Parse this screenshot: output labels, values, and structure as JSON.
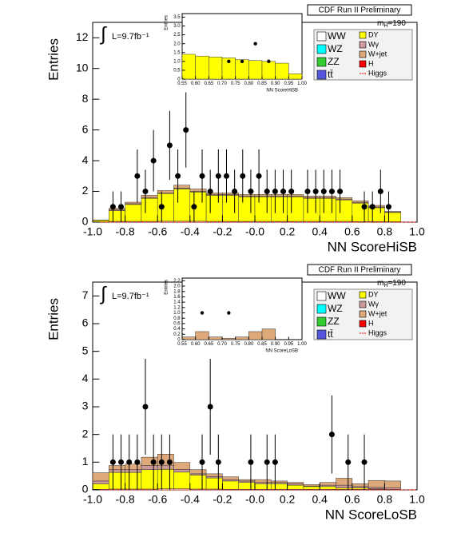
{
  "chart_data": [
    {
      "type": "histogram",
      "title": "CDF Run II Preliminary",
      "mass_symbol": "m",
      "mass_subscript": "H",
      "mass_value": "=190",
      "lumi_symbol": "∫",
      "lumi": "L=9.7fb⁻¹",
      "xlabel": "NN ScoreHiSB",
      "ylabel": "Entries",
      "xlim": [
        -1,
        1
      ],
      "ylim": [
        0,
        13
      ],
      "xticks": [
        {
          "value": -1,
          "label": "-1.0"
        },
        -0.8,
        -0.6,
        -0.4,
        -0.2,
        {
          "value": 0,
          "label": "-0.0"
        },
        0.2,
        0.4,
        0.6,
        0.8,
        {
          "value": 1,
          "label": "1.0"
        }
      ],
      "yticks": [
        0,
        2,
        4,
        6,
        8,
        10,
        12
      ],
      "bins": [
        -1,
        -0.9,
        -0.8,
        -0.7,
        -0.6,
        -0.5,
        -0.4,
        -0.3,
        -0.2,
        -0.1,
        0,
        0.1,
        0.2,
        0.3,
        0.4,
        0.5,
        0.6,
        0.7,
        0.8,
        0.9,
        1
      ],
      "series": [
        {
          "name": "WW",
          "color": "#ffffff",
          "values": [
            0.02,
            0.05,
            0.05,
            0.05,
            0.06,
            0.06,
            0.06,
            0.05,
            0.05,
            0.05,
            0.05,
            0.05,
            0.05,
            0.05,
            0.05,
            0.05,
            0.04,
            0.04,
            0.03,
            0
          ]
        },
        {
          "name": "WZ",
          "color": "#00ffff",
          "values": [
            0,
            0,
            0,
            0,
            0,
            0,
            0,
            0,
            0,
            0,
            0,
            0,
            0,
            0,
            0,
            0,
            0,
            0,
            0,
            0
          ]
        },
        {
          "name": "ZZ",
          "color": "#33cc33",
          "values": [
            0,
            0,
            0,
            0,
            0,
            0,
            0,
            0,
            0,
            0,
            0,
            0,
            0,
            0,
            0,
            0,
            0,
            0,
            0,
            0
          ]
        },
        {
          "name": "tt̄",
          "color": "#5555dd",
          "values": [
            0,
            0,
            0,
            0,
            0,
            0,
            0,
            0,
            0,
            0,
            0,
            0,
            0,
            0,
            0,
            0,
            0,
            0,
            0,
            0
          ]
        },
        {
          "name": "DY",
          "color": "#ffff00",
          "values": [
            0.1,
            0.7,
            1.1,
            1.5,
            1.8,
            2.1,
            1.9,
            1.7,
            1.7,
            1.6,
            1.6,
            1.6,
            1.6,
            1.5,
            1.5,
            1.4,
            1.2,
            0.9,
            0.6,
            0
          ]
        },
        {
          "name": "Wγ",
          "color": "#cc9999",
          "values": [
            0,
            0.05,
            0.05,
            0.05,
            0.05,
            0.05,
            0.05,
            0.05,
            0.05,
            0.05,
            0.05,
            0.05,
            0.05,
            0.05,
            0.05,
            0.05,
            0.05,
            0.05,
            0.02,
            0
          ]
        },
        {
          "name": "W+jet",
          "color": "#dda87a",
          "values": [
            0.02,
            0.1,
            0.1,
            0.15,
            0.15,
            0.2,
            0.15,
            0.1,
            0.1,
            0.1,
            0.1,
            0.1,
            0.1,
            0.1,
            0.1,
            0.1,
            0.1,
            0.1,
            0.05,
            0
          ]
        },
        {
          "name": "H",
          "color": "#ff0000",
          "values": [
            0,
            0,
            0,
            0,
            0,
            0,
            0,
            0,
            0,
            0,
            0,
            0,
            0,
            0,
            0,
            0,
            0,
            0,
            0,
            0
          ]
        },
        {
          "name": "Higgs",
          "color": "#ff0000",
          "style": "line",
          "values": [
            0,
            0,
            0,
            0,
            0,
            0,
            0,
            0,
            0,
            0,
            0,
            0,
            0,
            0,
            0,
            0,
            0,
            0,
            0,
            0
          ]
        }
      ],
      "points": {
        "x": [
          -0.875,
          -0.825,
          -0.725,
          -0.675,
          -0.625,
          -0.575,
          -0.525,
          -0.475,
          -0.425,
          -0.375,
          -0.325,
          -0.275,
          -0.225,
          -0.175,
          -0.125,
          -0.075,
          -0.025,
          0.025,
          0.075,
          0.125,
          0.175,
          0.225,
          0.325,
          0.375,
          0.425,
          0.475,
          0.525,
          0.675,
          0.725,
          0.775,
          0.825
        ],
        "values": [
          1,
          1,
          3,
          2,
          4,
          1,
          5,
          3,
          6,
          1,
          3,
          2,
          3,
          3,
          2,
          3,
          2,
          3,
          2,
          2,
          2,
          2,
          2,
          2,
          2,
          2,
          2,
          1,
          1,
          2,
          1
        ],
        "errors": [
          1,
          1,
          1.73,
          1.41,
          2,
          1,
          2.24,
          1.73,
          2.45,
          1,
          1.73,
          1.41,
          1.73,
          1.73,
          1.41,
          1.73,
          1.41,
          1.73,
          1.41,
          1.41,
          1.41,
          1.41,
          1.41,
          1.41,
          1.41,
          1.41,
          1.41,
          1,
          1,
          1.41,
          1
        ]
      },
      "inset": {
        "type": "histogram",
        "xlabel": "NN ScoreHiSB",
        "ylabel": "Entries",
        "color": "#ffff00",
        "xlim": [
          0.55,
          1
        ],
        "ylim": [
          0,
          3.7
        ],
        "xticks": [
          0.55,
          {
            "value": 0.6,
            "label": "0.60"
          },
          0.65,
          {
            "value": 0.7,
            "label": "0.70"
          },
          0.75,
          {
            "value": 0.8,
            "label": "0.80"
          },
          0.85,
          {
            "value": 0.9,
            "label": "0.90"
          },
          0.95,
          {
            "value": 1,
            "label": "1.00"
          }
        ],
        "yticks": [
          0,
          0.5,
          {
            "value": 1,
            "label": "1.0"
          },
          1.5,
          {
            "value": 2,
            "label": "2.0"
          },
          2.5,
          {
            "value": 3,
            "label": "3.0"
          },
          3.5
        ],
        "bins": [
          0.55,
          0.6,
          0.65,
          0.7,
          0.75,
          0.8,
          0.85,
          0.9,
          0.95,
          1
        ],
        "values": [
          1.4,
          1.3,
          1.25,
          1.2,
          1.1,
          1.05,
          1.0,
          0.9,
          0.3
        ],
        "points": {
          "x": [
            0.725,
            0.775,
            0.825,
            0.875
          ],
          "values": [
            1,
            1,
            2,
            1
          ]
        }
      }
    },
    {
      "type": "histogram",
      "title": "CDF Run II Preliminary",
      "mass_symbol": "m",
      "mass_subscript": "H",
      "mass_value": "=190",
      "lumi_symbol": "∫",
      "lumi": "L=9.7fb⁻¹",
      "xlabel": "NN ScoreLoSB",
      "ylabel": "Entries",
      "xlim": [
        -1,
        1
      ],
      "ylim": [
        0,
        7.5
      ],
      "xticks": [
        {
          "value": -1,
          "label": "-1.0"
        },
        -0.8,
        -0.6,
        -0.4,
        -0.2,
        {
          "value": 0,
          "label": "-0.0"
        },
        0.2,
        0.4,
        0.6,
        0.8,
        {
          "value": 1,
          "label": "1.0"
        }
      ],
      "yticks": [
        0,
        1,
        2,
        3,
        4,
        5,
        6,
        7
      ],
      "bins": [
        -1,
        -0.9,
        -0.8,
        -0.7,
        -0.6,
        -0.5,
        -0.4,
        -0.3,
        -0.2,
        -0.1,
        0,
        0.1,
        0.2,
        0.3,
        0.4,
        0.5,
        0.6,
        0.7,
        0.8,
        0.9,
        1
      ],
      "series": [
        {
          "name": "WW",
          "color": "#ffffff",
          "values": [
            0.02,
            0.03,
            0.03,
            0.03,
            0.04,
            0.04,
            0.03,
            0.03,
            0.02,
            0.02,
            0.02,
            0.02,
            0.02,
            0.02,
            0.02,
            0.02,
            0.02,
            0.02,
            0.02,
            0
          ]
        },
        {
          "name": "WZ",
          "color": "#00ffff",
          "values": [
            0,
            0,
            0,
            0,
            0,
            0,
            0,
            0,
            0,
            0,
            0,
            0,
            0,
            0,
            0,
            0,
            0,
            0,
            0,
            0
          ]
        },
        {
          "name": "ZZ",
          "color": "#33cc33",
          "values": [
            0,
            0,
            0,
            0,
            0,
            0,
            0,
            0,
            0,
            0,
            0,
            0,
            0,
            0,
            0,
            0,
            0,
            0,
            0,
            0
          ]
        },
        {
          "name": "tt̄",
          "color": "#5555dd",
          "values": [
            0,
            0,
            0,
            0,
            0,
            0,
            0,
            0,
            0,
            0,
            0,
            0,
            0,
            0,
            0,
            0,
            0,
            0,
            0,
            0
          ]
        },
        {
          "name": "DY",
          "color": "#ffff00",
          "values": [
            0.2,
            0.6,
            0.6,
            0.7,
            0.7,
            0.6,
            0.5,
            0.4,
            0.3,
            0.25,
            0.2,
            0.2,
            0.15,
            0.1,
            0.1,
            0.05,
            0.05,
            0.02,
            0,
            0
          ]
        },
        {
          "name": "Wγ",
          "color": "#cc9999",
          "values": [
            0.1,
            0.1,
            0.1,
            0.15,
            0.15,
            0.1,
            0.05,
            0.05,
            0.05,
            0.05,
            0.05,
            0.05,
            0.05,
            0.02,
            0.05,
            0.1,
            0.05,
            0.05,
            0.05,
            0
          ]
        },
        {
          "name": "W+jet",
          "color": "#dda87a",
          "values": [
            0.3,
            0.15,
            0.2,
            0.3,
            0.4,
            0.25,
            0.15,
            0.1,
            0.1,
            0.05,
            0.1,
            0.05,
            0.05,
            0.05,
            0.1,
            0.25,
            0.1,
            0.25,
            0.25,
            0
          ]
        },
        {
          "name": "H",
          "color": "#ff0000",
          "values": [
            0,
            0,
            0,
            0,
            0,
            0,
            0,
            0,
            0,
            0,
            0,
            0,
            0,
            0,
            0,
            0,
            0,
            0,
            0,
            0
          ]
        },
        {
          "name": "Higgs",
          "color": "#ff0000",
          "style": "line",
          "values": [
            0,
            0,
            0,
            0,
            0,
            0,
            0,
            0,
            0,
            0,
            0,
            0,
            0,
            0,
            0,
            0,
            0,
            0,
            0,
            0
          ]
        }
      ],
      "points": {
        "x": [
          -0.875,
          -0.825,
          -0.775,
          -0.725,
          -0.675,
          -0.625,
          -0.575,
          -0.525,
          -0.325,
          -0.275,
          -0.225,
          -0.025,
          0.075,
          0.125,
          0.475,
          0.575,
          0.675
        ],
        "values": [
          1,
          1,
          1,
          1,
          3,
          1,
          1,
          1,
          1,
          3,
          1,
          1,
          1,
          1,
          2,
          1,
          1
        ],
        "errors": [
          1,
          1,
          1,
          1,
          1.73,
          1,
          1,
          1,
          1,
          1.73,
          1,
          1,
          1,
          1,
          1.41,
          1,
          1
        ]
      },
      "inset": {
        "type": "histogram",
        "xlabel": "NN ScoreLoSB",
        "ylabel": "Entries",
        "color": "#dda87a",
        "xlim": [
          0.55,
          1
        ],
        "ylim": [
          0,
          2.3
        ],
        "xticks": [
          0.55,
          {
            "value": 0.6,
            "label": "0.60"
          },
          0.65,
          {
            "value": 0.7,
            "label": "0.70"
          },
          0.75,
          {
            "value": 0.8,
            "label": "0.80"
          },
          0.85,
          {
            "value": 0.9,
            "label": "0.90"
          },
          0.95,
          {
            "value": 1,
            "label": "1.00"
          }
        ],
        "yticks": [
          0,
          0.2,
          0.4,
          0.6,
          0.8,
          {
            "value": 1,
            "label": "1.0"
          },
          1.2,
          1.4,
          1.6,
          1.8,
          {
            "value": 2,
            "label": "2.0"
          },
          2.2
        ],
        "bins": [
          0.55,
          0.6,
          0.65,
          0.7,
          0.75,
          0.8,
          0.85,
          0.9,
          0.95,
          1
        ],
        "values": [
          0.1,
          0.3,
          0.1,
          0.05,
          0.1,
          0.3,
          0.4,
          0,
          0
        ],
        "points": {
          "x": [
            0.625,
            0.725
          ],
          "values": [
            1,
            1
          ]
        }
      }
    }
  ]
}
